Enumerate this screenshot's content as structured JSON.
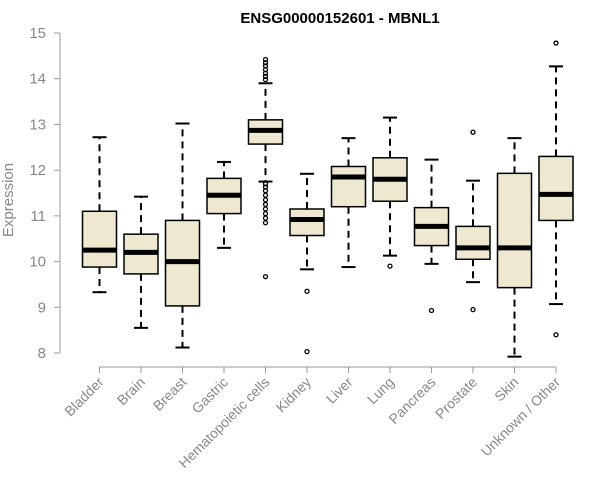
{
  "chart_data": {
    "type": "box",
    "title": "ENSG00000152601 - MBNL1",
    "ylabel": "Expression",
    "ylim": [
      8,
      15
    ],
    "yticks": [
      8,
      9,
      10,
      11,
      12,
      13,
      14,
      15
    ],
    "box_fill": "#efe8d0",
    "grid": false,
    "categories": [
      "Bladder",
      "Brain",
      "Breast",
      "Gastric",
      "Hematopoietic cells",
      "Kidney",
      "Liver",
      "Lung",
      "Pancreas",
      "Prostate",
      "Skin",
      "Unknown / Other"
    ],
    "boxes": [
      {
        "whisker_low": 9.33,
        "q1": 9.88,
        "median": 10.25,
        "q3": 11.1,
        "whisker_high": 12.72,
        "outliers": []
      },
      {
        "whisker_low": 8.55,
        "q1": 9.73,
        "median": 10.2,
        "q3": 10.6,
        "whisker_high": 11.42,
        "outliers": []
      },
      {
        "whisker_low": 8.12,
        "q1": 9.03,
        "median": 10.0,
        "q3": 10.9,
        "whisker_high": 13.02,
        "outliers": []
      },
      {
        "whisker_low": 10.3,
        "q1": 11.05,
        "median": 11.45,
        "q3": 11.82,
        "whisker_high": 12.18,
        "outliers": []
      },
      {
        "whisker_low": 11.75,
        "q1": 12.57,
        "median": 12.87,
        "q3": 13.1,
        "whisker_high": 13.9,
        "outliers": [
          9.67,
          10.85,
          10.95,
          11.05,
          11.15,
          11.25,
          11.35,
          11.45,
          11.55,
          11.63,
          11.7,
          13.98,
          14.05,
          14.12,
          14.2,
          14.28,
          14.35,
          14.42
        ]
      },
      {
        "whisker_low": 9.83,
        "q1": 10.57,
        "median": 10.92,
        "q3": 11.15,
        "whisker_high": 11.92,
        "outliers": [
          9.35,
          8.03
        ]
      },
      {
        "whisker_low": 9.88,
        "q1": 11.2,
        "median": 11.85,
        "q3": 12.08,
        "whisker_high": 12.7,
        "outliers": []
      },
      {
        "whisker_low": 10.13,
        "q1": 11.32,
        "median": 11.8,
        "q3": 12.27,
        "whisker_high": 13.15,
        "outliers": [
          9.9
        ]
      },
      {
        "whisker_low": 9.95,
        "q1": 10.35,
        "median": 10.77,
        "q3": 11.18,
        "whisker_high": 12.23,
        "outliers": [
          8.93
        ]
      },
      {
        "whisker_low": 9.55,
        "q1": 10.05,
        "median": 10.3,
        "q3": 10.77,
        "whisker_high": 11.77,
        "outliers": [
          12.83,
          8.95
        ]
      },
      {
        "whisker_low": 7.92,
        "q1": 9.43,
        "median": 10.3,
        "q3": 11.93,
        "whisker_high": 12.7,
        "outliers": []
      },
      {
        "whisker_low": 9.07,
        "q1": 10.9,
        "median": 11.47,
        "q3": 12.3,
        "whisker_high": 14.27,
        "outliers": [
          14.78,
          8.4
        ]
      }
    ]
  }
}
